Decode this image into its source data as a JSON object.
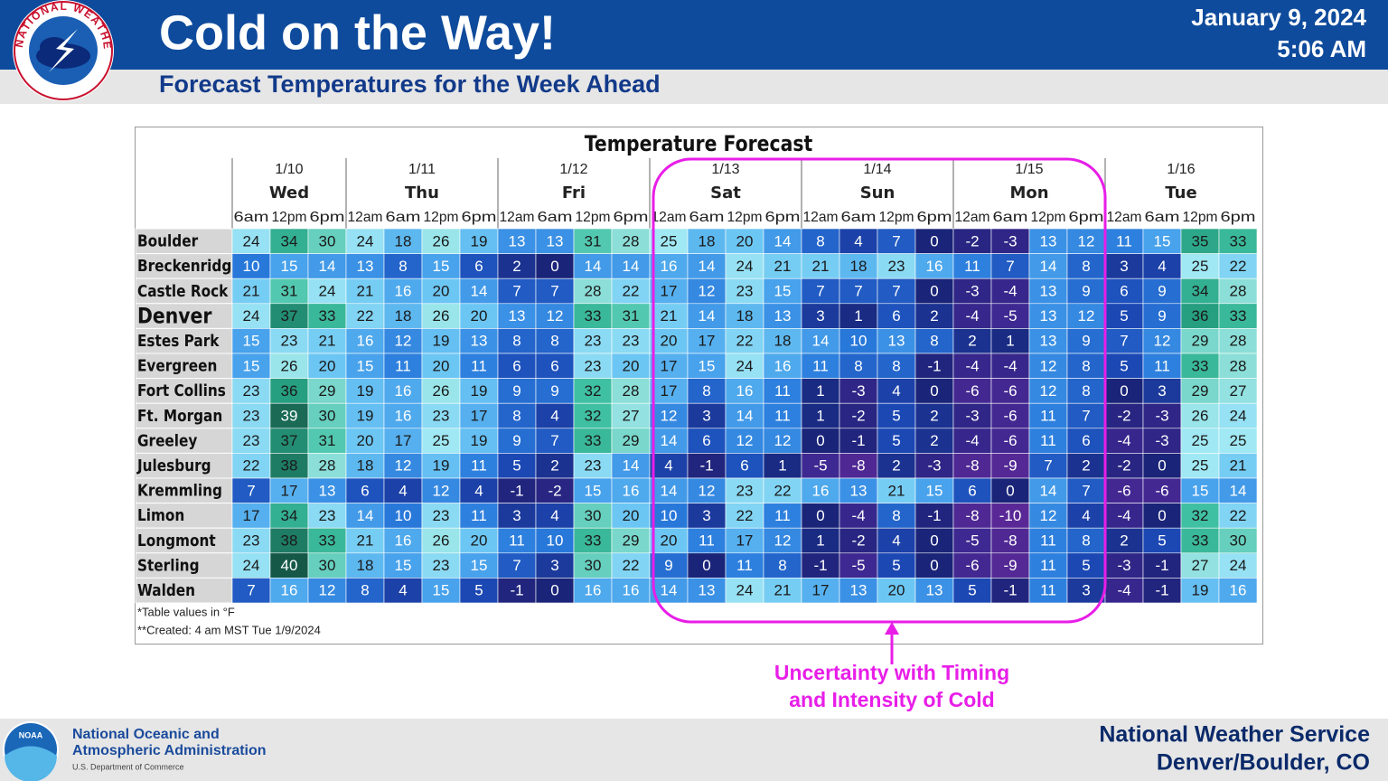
{
  "header": {
    "title": "Cold on the Way!",
    "subtitle": "Forecast Temperatures for the Week Ahead",
    "date": "January 9, 2024",
    "time": "5:06 AM",
    "logo_text": "NATIONAL WEATHER SERVICE"
  },
  "table": {
    "title": "Temperature Forecast",
    "days": [
      {
        "date": "1/10",
        "day": "Wed",
        "times": [
          "6am",
          "12pm",
          "6pm"
        ]
      },
      {
        "date": "1/11",
        "day": "Thu",
        "times": [
          "12am",
          "6am",
          "12pm",
          "6pm"
        ]
      },
      {
        "date": "1/12",
        "day": "Fri",
        "times": [
          "12am",
          "6am",
          "12pm",
          "6pm"
        ]
      },
      {
        "date": "1/13",
        "day": "Sat",
        "times": [
          "12am",
          "6am",
          "12pm",
          "6pm"
        ]
      },
      {
        "date": "1/14",
        "day": "Sun",
        "times": [
          "12am",
          "6am",
          "12pm",
          "6pm"
        ]
      },
      {
        "date": "1/15",
        "day": "Mon",
        "times": [
          "12am",
          "6am",
          "12pm",
          "6pm"
        ]
      },
      {
        "date": "1/16",
        "day": "Tue",
        "times": [
          "12am",
          "6am",
          "12pm",
          "6pm"
        ]
      }
    ],
    "rows": [
      {
        "location": "Boulder",
        "values": [
          24,
          34,
          30,
          24,
          18,
          26,
          19,
          13,
          13,
          31,
          28,
          25,
          18,
          20,
          14,
          8,
          4,
          7,
          0,
          -2,
          -3,
          13,
          12,
          11,
          15,
          35,
          33
        ]
      },
      {
        "location": "Breckenridge",
        "values": [
          10,
          15,
          14,
          13,
          8,
          15,
          6,
          2,
          0,
          14,
          14,
          16,
          14,
          24,
          21,
          21,
          18,
          23,
          16,
          11,
          7,
          14,
          8,
          3,
          4,
          25,
          22
        ]
      },
      {
        "location": "Castle Rock",
        "values": [
          21,
          31,
          24,
          21,
          16,
          20,
          14,
          7,
          7,
          28,
          22,
          17,
          12,
          23,
          15,
          7,
          7,
          7,
          0,
          -3,
          -4,
          13,
          9,
          6,
          9,
          34,
          28
        ]
      },
      {
        "location": "Denver",
        "values": [
          24,
          37,
          33,
          22,
          18,
          26,
          20,
          13,
          12,
          33,
          31,
          21,
          14,
          18,
          13,
          3,
          1,
          6,
          2,
          -4,
          -5,
          13,
          12,
          5,
          9,
          36,
          33
        ]
      },
      {
        "location": "Estes Park",
        "values": [
          15,
          23,
          21,
          16,
          12,
          19,
          13,
          8,
          8,
          23,
          23,
          20,
          17,
          22,
          18,
          14,
          10,
          13,
          8,
          2,
          1,
          13,
          9,
          7,
          12,
          29,
          28
        ]
      },
      {
        "location": "Evergreen",
        "values": [
          15,
          26,
          20,
          15,
          11,
          20,
          11,
          6,
          6,
          23,
          20,
          17,
          15,
          24,
          16,
          11,
          8,
          8,
          -1,
          -4,
          -4,
          12,
          8,
          5,
          11,
          33,
          28
        ]
      },
      {
        "location": "Fort Collins",
        "values": [
          23,
          36,
          29,
          19,
          16,
          26,
          19,
          9,
          9,
          32,
          28,
          17,
          8,
          16,
          11,
          1,
          -3,
          4,
          0,
          -6,
          -6,
          12,
          8,
          0,
          3,
          29,
          27
        ]
      },
      {
        "location": "Ft. Morgan",
        "values": [
          23,
          39,
          30,
          19,
          16,
          23,
          17,
          8,
          4,
          32,
          27,
          12,
          3,
          14,
          11,
          1,
          -2,
          5,
          2,
          -3,
          -6,
          11,
          7,
          -2,
          -3,
          26,
          24
        ]
      },
      {
        "location": "Greeley",
        "values": [
          23,
          37,
          31,
          20,
          17,
          25,
          19,
          9,
          7,
          33,
          29,
          14,
          6,
          12,
          12,
          0,
          -1,
          5,
          2,
          -4,
          -6,
          11,
          6,
          -4,
          -3,
          25,
          25
        ]
      },
      {
        "location": "Julesburg",
        "values": [
          22,
          38,
          28,
          18,
          12,
          19,
          11,
          5,
          2,
          23,
          14,
          4,
          -1,
          6,
          1,
          -5,
          -8,
          2,
          -3,
          -8,
          -9,
          7,
          2,
          -2,
          0,
          25,
          21
        ]
      },
      {
        "location": "Kremmling",
        "values": [
          7,
          17,
          13,
          6,
          4,
          12,
          4,
          -1,
          -2,
          15,
          16,
          14,
          12,
          23,
          22,
          16,
          13,
          21,
          15,
          6,
          0,
          14,
          7,
          -6,
          -6,
          15,
          14
        ]
      },
      {
        "location": "Limon",
        "values": [
          17,
          34,
          23,
          14,
          10,
          23,
          11,
          3,
          4,
          30,
          20,
          10,
          3,
          22,
          11,
          0,
          -4,
          8,
          -1,
          -8,
          -10,
          12,
          4,
          -4,
          0,
          32,
          22
        ]
      },
      {
        "location": "Longmont",
        "values": [
          23,
          38,
          33,
          21,
          16,
          26,
          20,
          11,
          10,
          33,
          29,
          20,
          11,
          17,
          12,
          1,
          -2,
          4,
          0,
          -5,
          -8,
          11,
          8,
          2,
          5,
          33,
          30
        ]
      },
      {
        "location": "Sterling",
        "values": [
          24,
          40,
          30,
          18,
          15,
          23,
          15,
          7,
          3,
          30,
          22,
          9,
          0,
          11,
          8,
          -1,
          -5,
          5,
          0,
          -6,
          -9,
          11,
          5,
          -3,
          -1,
          27,
          24
        ]
      },
      {
        "location": "Walden",
        "values": [
          7,
          16,
          12,
          8,
          4,
          15,
          5,
          -1,
          0,
          16,
          16,
          14,
          13,
          24,
          21,
          17,
          13,
          20,
          13,
          5,
          -1,
          11,
          3,
          -4,
          -1,
          19,
          16
        ]
      }
    ],
    "notes": [
      "*Table values in °F",
      "**Created: 4 am MST Tue 1/9/2024"
    ]
  },
  "annotation": {
    "lines": [
      "Uncertainty with Timing",
      "and Intensity of Cold"
    ]
  },
  "footer": {
    "agency_logo": "NOAA",
    "agency": [
      "National Oceanic and",
      "Atmospheric Administration"
    ],
    "department": "U.S. Department of Commerce",
    "office": [
      "National Weather Service",
      "Denver/Boulder, CO"
    ]
  }
}
